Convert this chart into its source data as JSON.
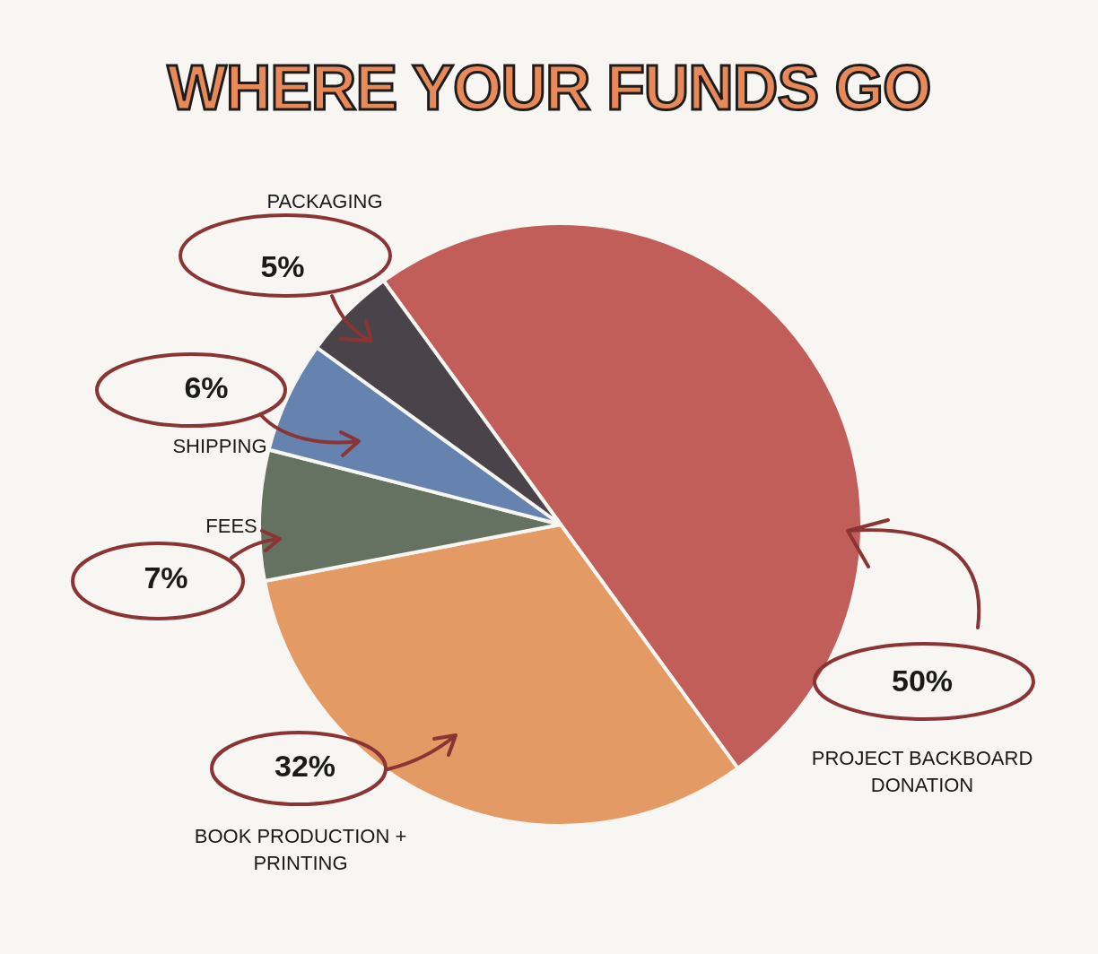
{
  "chart_data": {
    "type": "pie",
    "title": "WHERE YOUR FUNDS GO",
    "categories": [
      "PROJECT BACKBOARD DONATION",
      "BOOK PRODUCTION + PRINTING",
      "FEES",
      "SHIPPING",
      "PACKAGING"
    ],
    "values": [
      50,
      32,
      7,
      6,
      5
    ],
    "value_labels": [
      "50%",
      "32%",
      "7%",
      "6%",
      "5%"
    ],
    "colors": [
      "#c25e5a",
      "#e49a64",
      "#667261",
      "#6583ae",
      "#4a4349"
    ],
    "legend": false
  }
}
